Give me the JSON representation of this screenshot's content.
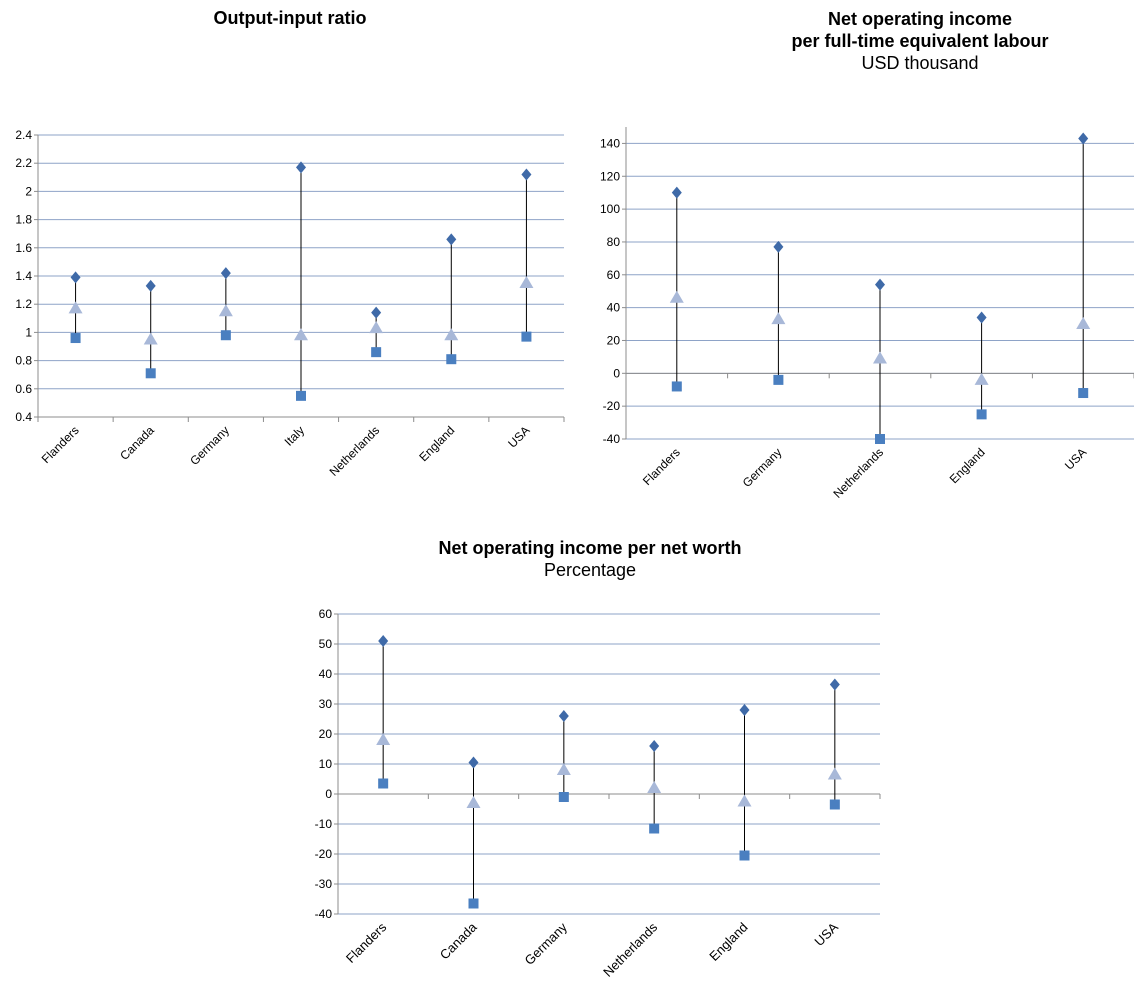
{
  "chart_data": [
    {
      "type": "scatter",
      "title": "Output-input ratio",
      "subtitle": "",
      "categories": [
        "Flanders",
        "Canada",
        "Germany",
        "Italy",
        "Netherlands",
        "England",
        "USA"
      ],
      "series": [
        {
          "marker": "diamond",
          "color": "#3f6aa8",
          "values": [
            1.39,
            1.33,
            1.42,
            2.17,
            1.14,
            1.66,
            2.12
          ]
        },
        {
          "marker": "triangle",
          "color": "#a8b8d8",
          "values": [
            1.17,
            0.95,
            1.15,
            0.98,
            1.03,
            0.98,
            1.35
          ]
        },
        {
          "marker": "square",
          "color": "#4a7fc0",
          "values": [
            0.96,
            0.71,
            0.98,
            0.55,
            0.86,
            0.81,
            0.97
          ]
        }
      ],
      "ylim": [
        0.4,
        2.4
      ],
      "yticks": [
        0.4,
        0.6,
        0.8,
        1.0,
        1.2,
        1.4,
        1.6,
        1.8,
        2.0,
        2.2,
        2.4
      ],
      "ytick_labels": [
        "0.4",
        "0.6",
        "0.8",
        "1",
        "1.2",
        "1.4",
        "1.6",
        "1.8",
        "2",
        "2.2",
        "2.4"
      ],
      "grid": true,
      "legend": "none"
    },
    {
      "type": "scatter",
      "title": "Net operating income\nper full-time equivalent labour",
      "subtitle": "USD thousand",
      "categories": [
        "Flanders",
        "Germany",
        "Netherlands",
        "England",
        "USA"
      ],
      "series": [
        {
          "marker": "diamond",
          "color": "#3f6aa8",
          "values": [
            110,
            77,
            54,
            34,
            143
          ]
        },
        {
          "marker": "triangle",
          "color": "#a8b8d8",
          "values": [
            46,
            33,
            9,
            -4,
            30
          ]
        },
        {
          "marker": "square",
          "color": "#4a7fc0",
          "values": [
            -8,
            -4,
            -40,
            -25,
            -12
          ]
        }
      ],
      "ylim": [
        -40,
        150
      ],
      "yticks": [
        -40,
        -20,
        0,
        20,
        40,
        60,
        80,
        100,
        120,
        140
      ],
      "ytick_labels": [
        "-40",
        "-20",
        "0",
        "20",
        "40",
        "60",
        "80",
        "100",
        "120",
        "140"
      ],
      "grid": true,
      "legend": "none"
    },
    {
      "type": "scatter",
      "title": "Net operating income per net worth",
      "subtitle": "Percentage",
      "categories": [
        "Flanders",
        "Canada",
        "Germany",
        "Netherlands",
        "England",
        "USA"
      ],
      "series": [
        {
          "marker": "diamond",
          "color": "#3f6aa8",
          "values": [
            51,
            10.5,
            26,
            16,
            28,
            36.5
          ]
        },
        {
          "marker": "triangle",
          "color": "#a8b8d8",
          "values": [
            18,
            -3,
            8,
            2,
            -2.5,
            6.5
          ]
        },
        {
          "marker": "square",
          "color": "#4a7fc0",
          "values": [
            3.5,
            -36.5,
            -1,
            -11.5,
            -20.5,
            -3.5
          ]
        }
      ],
      "ylim": [
        -40,
        60
      ],
      "yticks": [
        -40,
        -30,
        -20,
        -10,
        0,
        10,
        20,
        30,
        40,
        50,
        60
      ],
      "ytick_labels": [
        "-40",
        "-30",
        "-20",
        "-10",
        "0",
        "10",
        "20",
        "30",
        "40",
        "50",
        "60"
      ],
      "grid": true,
      "legend": "none"
    }
  ]
}
